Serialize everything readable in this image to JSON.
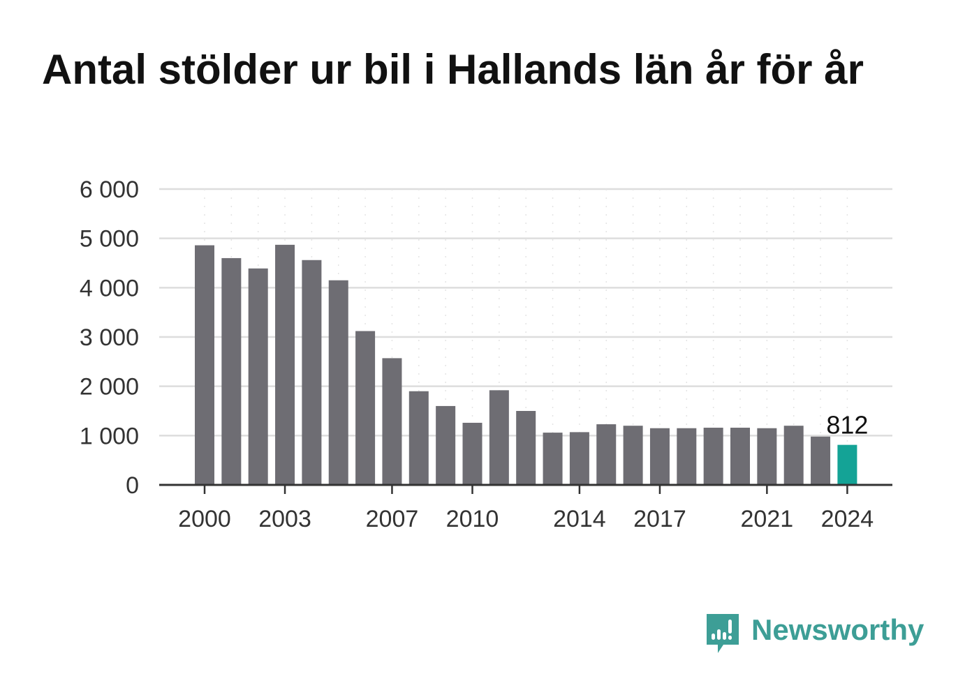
{
  "title": "Antal stölder ur bil i Hallands län år för år",
  "brand": {
    "name": "Newsworthy",
    "icon": "newsworthy-logo-icon"
  },
  "colors": {
    "bar": "#6e6d73",
    "highlight": "#14a396",
    "grid": "#dddddd",
    "axis": "#333333",
    "text": "#333333",
    "brand": "#3d9e96"
  },
  "chart_data": {
    "type": "bar",
    "categories": [
      "2000",
      "2001",
      "2002",
      "2003",
      "2004",
      "2005",
      "2006",
      "2007",
      "2008",
      "2009",
      "2010",
      "2011",
      "2012",
      "2013",
      "2014",
      "2015",
      "2016",
      "2017",
      "2018",
      "2019",
      "2020",
      "2021",
      "2022",
      "2023",
      "2024"
    ],
    "values": [
      4860,
      4600,
      4390,
      4870,
      4560,
      4150,
      3120,
      2570,
      1900,
      1600,
      1260,
      1920,
      1500,
      1060,
      1070,
      1230,
      1200,
      1150,
      1150,
      1160,
      1160,
      1150,
      1200,
      980,
      812
    ],
    "highlight_index": 24,
    "data_labels": [
      {
        "index": 24,
        "text": "812"
      }
    ],
    "x_tick_labels": [
      "2000",
      "2003",
      "2007",
      "2010",
      "2014",
      "2017",
      "2021",
      "2024"
    ],
    "y_ticks": [
      0,
      1000,
      2000,
      3000,
      4000,
      5000,
      6000
    ],
    "y_tick_labels": [
      "0",
      "1 000",
      "2 000",
      "3 000",
      "4 000",
      "5 000",
      "6 000"
    ],
    "ylim": [
      0,
      6000
    ],
    "xlabel": "",
    "ylabel": "",
    "grid": true
  }
}
